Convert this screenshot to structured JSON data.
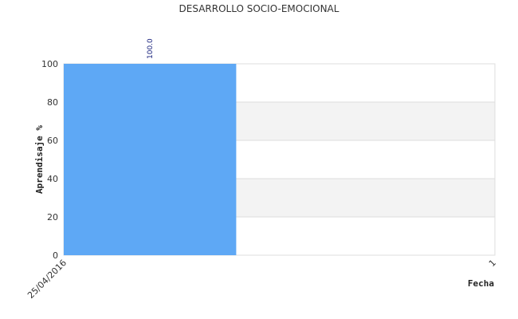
{
  "chart_data": {
    "type": "bar",
    "title": "DESARROLLO SOCIO-EMOCIONAL",
    "xlabel": "Fecha",
    "ylabel": "Aprendisaje %",
    "categories": [
      "25/04/2016"
    ],
    "values": [
      100
    ],
    "data_labels": [
      "100.0"
    ],
    "x_end_tick": "1",
    "ylim": [
      0,
      100
    ],
    "yticks": [
      0,
      20,
      40,
      60,
      80,
      100
    ],
    "grid": true,
    "banded_background": true,
    "bar_color": "#5ea8f5",
    "band_color": "#f3f3f3",
    "grid_color": "#dddddd",
    "data_label_color": "#1a237e"
  }
}
